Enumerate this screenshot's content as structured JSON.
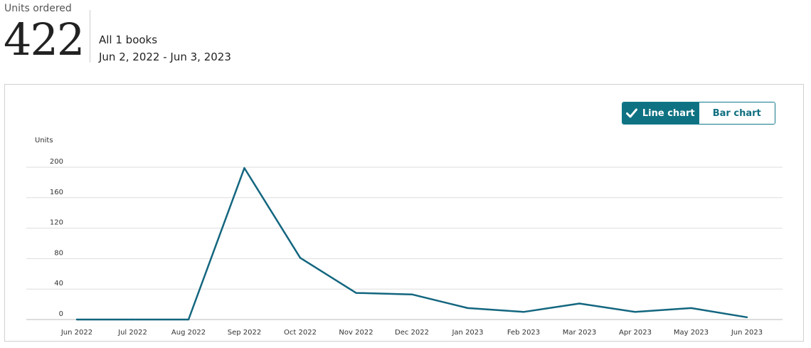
{
  "header": {
    "metric_label": "Units ordered",
    "metric_value": "422",
    "scope": "All 1 books",
    "date_range": "Jun 2, 2022 - Jun 3, 2023"
  },
  "toggle": {
    "line_label": "Line chart",
    "bar_label": "Bar chart",
    "selected": "line",
    "check_icon": "checkmark-icon"
  },
  "colors": {
    "line": "#13667f",
    "accent": "#0f7282",
    "grid": "#dddddd"
  },
  "chart_data": {
    "type": "line",
    "ylabel": "Units",
    "xlabel": "",
    "ylim": [
      0,
      200
    ],
    "yticks": [
      0,
      40,
      80,
      120,
      160,
      200
    ],
    "grid": true,
    "categories": [
      "Jun 2022",
      "Jul 2022",
      "Aug 2022",
      "Sep 2022",
      "Oct 2022",
      "Nov 2022",
      "Dec 2022",
      "Jan 2023",
      "Feb 2023",
      "Mar 2023",
      "Apr 2023",
      "May 2023",
      "Jun 2023"
    ],
    "series": [
      {
        "values": [
          0,
          0,
          0,
          199,
          81,
          35,
          33,
          15,
          10,
          21,
          10,
          15,
          3
        ]
      }
    ]
  }
}
